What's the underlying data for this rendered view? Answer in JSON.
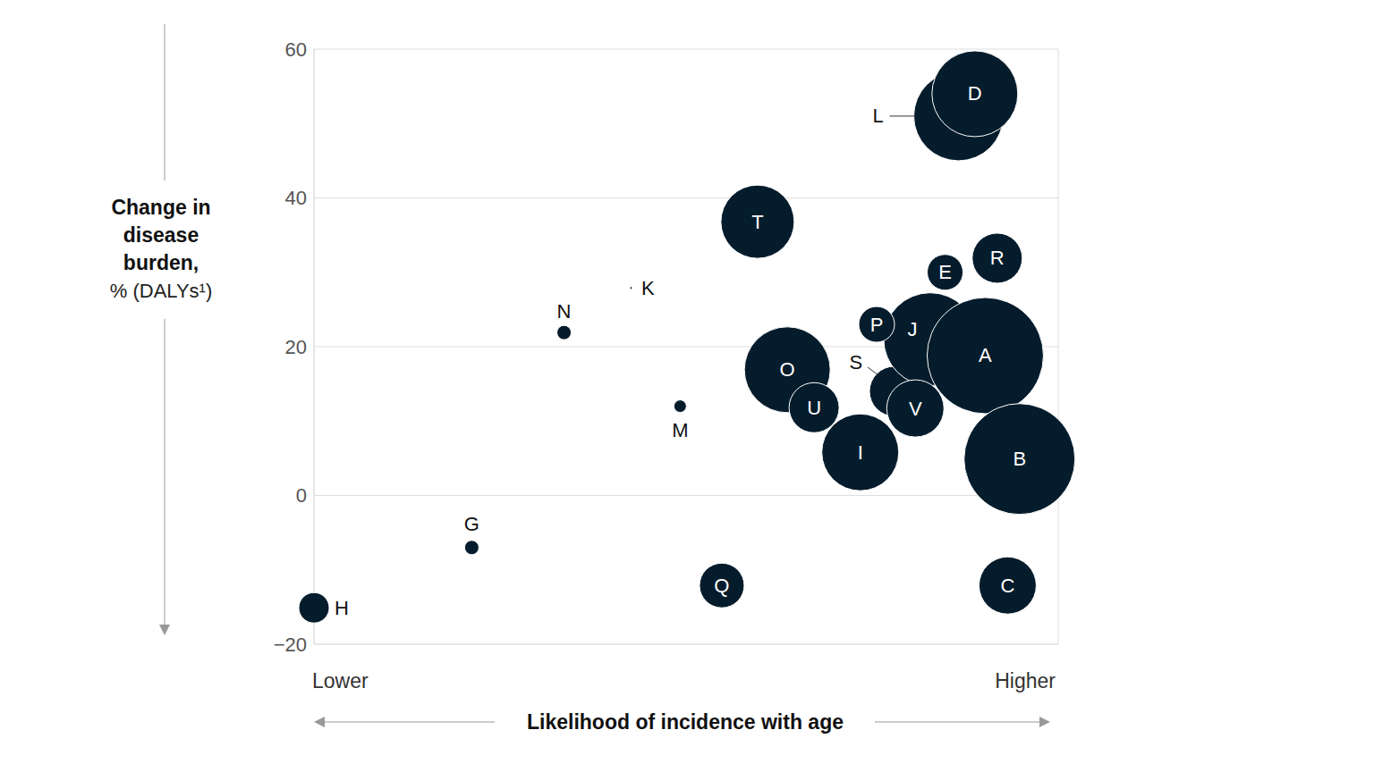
{
  "chart_data": {
    "type": "scatter",
    "ylabel": "Change in disease burden,",
    "ylabel_unit": "% (DALYs¹)",
    "xlabel": "Likelihood of incidence with age",
    "x_end_labels": [
      "Lower",
      "Higher"
    ],
    "xlim": [
      0,
      5
    ],
    "xticks": [
      0,
      1,
      2,
      3,
      4,
      5
    ],
    "ylim": [
      -20,
      60
    ],
    "yticks": [
      {
        "value": -20,
        "label": "−20"
      },
      0,
      20,
      40,
      60
    ],
    "grid": true,
    "tick_labels": "y",
    "color": "#051c2c",
    "marker": "circle",
    "labels": [
      "H",
      "G",
      "N",
      "K",
      "M",
      "Q",
      "C",
      "T",
      "L",
      "D",
      "R",
      "E",
      "O",
      "U",
      "I",
      "S",
      "J",
      "V",
      "P",
      "A",
      "B"
    ],
    "x": [
      0.0,
      1.06,
      1.68,
      2.13,
      2.46,
      2.74,
      4.66,
      2.98,
      4.33,
      4.44,
      4.59,
      4.24,
      3.18,
      3.36,
      3.67,
      3.9,
      4.14,
      4.04,
      3.78,
      4.51,
      4.74
    ],
    "y": [
      -15.1,
      -7.0,
      21.9,
      27.9,
      12.0,
      -12.1,
      -12.1,
      36.8,
      51.0,
      54.0,
      31.9,
      30.0,
      16.9,
      11.8,
      5.8,
      14.0,
      21.0,
      11.7,
      23.0,
      18.8,
      4.9
    ],
    "sizes": [
      289,
      64,
      64,
      2,
      49,
      625,
      1024,
      1681,
      2500,
      2304,
      784,
      400,
      2304,
      784,
      1849,
      784,
      2704,
      1024,
      400,
      4225,
      3844
    ]
  }
}
